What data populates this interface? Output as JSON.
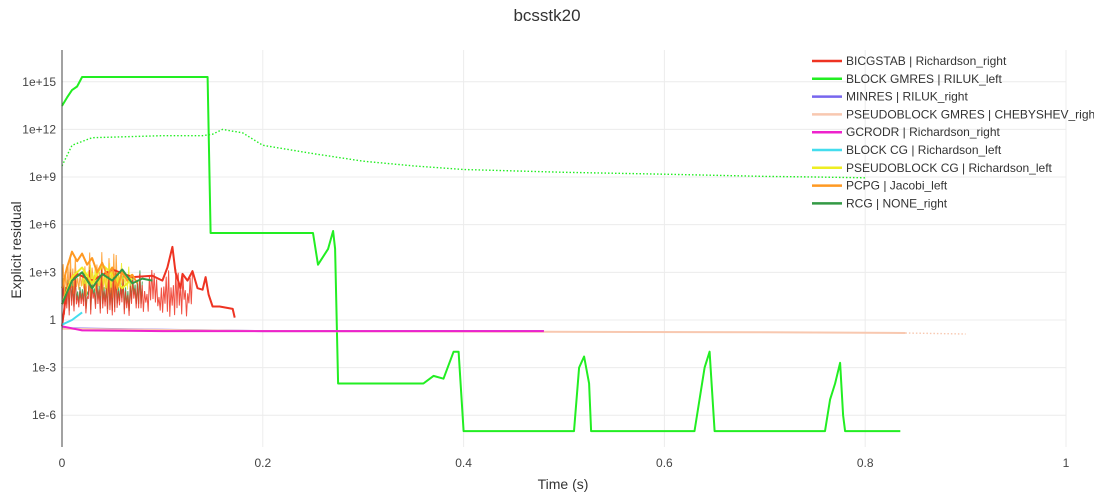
{
  "chart_data": {
    "type": "line",
    "title": "bcsstk20",
    "xlabel": "Time (s)",
    "ylabel": "Explicit residual",
    "x_axis": {
      "range": [
        0,
        1
      ],
      "ticks": [
        0,
        0.2,
        0.4,
        0.6,
        0.8,
        1
      ],
      "tick_labels": [
        "0",
        "0.2",
        "0.4",
        "0.6",
        "0.8",
        "1"
      ]
    },
    "y_axis": {
      "scale": "log",
      "range": [
        1e-08,
        1e+17
      ],
      "ticks": [
        1000000000000000.0,
        1000000000000.0,
        1000000000.0,
        1000000.0,
        1000.0,
        1,
        0.001,
        1e-06
      ],
      "tick_labels": [
        "1e+15",
        "1e+12",
        "1e+9",
        "1e+6",
        "1e+3",
        "1",
        "1e-3",
        "1e-6"
      ]
    },
    "grid": true,
    "legend_position": "top-right",
    "series": [
      {
        "name": "BICGSTAB | Richardson_right",
        "color": "#ee3322",
        "style": "solid",
        "points": [
          [
            0,
            0.4
          ],
          [
            0.005,
            100
          ],
          [
            0.015,
            800
          ],
          [
            0.03,
            300
          ],
          [
            0.05,
            1500
          ],
          [
            0.07,
            500
          ],
          [
            0.09,
            600
          ],
          [
            0.1,
            300
          ],
          [
            0.105,
            2000
          ],
          [
            0.11,
            40000
          ],
          [
            0.113,
            1000
          ],
          [
            0.118,
            100
          ],
          [
            0.12,
            800
          ],
          [
            0.125,
            300
          ],
          [
            0.13,
            1200
          ],
          [
            0.135,
            100
          ],
          [
            0.14,
            80
          ],
          [
            0.143,
            500
          ],
          [
            0.146,
            40
          ],
          [
            0.15,
            7
          ],
          [
            0.157,
            7
          ],
          [
            0.17,
            5
          ],
          [
            0.172,
            1.4
          ]
        ]
      },
      {
        "name": "BLOCK GMRES | RILUK_left",
        "color": "#22ee22",
        "style": "solid",
        "points": [
          [
            0,
            30000000000000.0
          ],
          [
            0.005,
            100000000000000.0
          ],
          [
            0.01,
            300000000000000.0
          ],
          [
            0.015,
            500000000000000.0
          ],
          [
            0.02,
            2000000000000000.0
          ],
          [
            0.145,
            2000000000000000.0
          ],
          [
            0.148,
            300000.0
          ],
          [
            0.25,
            300000.0
          ],
          [
            0.255,
            3000.0
          ],
          [
            0.265,
            30000.0
          ],
          [
            0.27,
            400000.0
          ],
          [
            0.272,
            30000.0
          ],
          [
            0.275,
            0.0001
          ],
          [
            0.36,
            0.0001
          ],
          [
            0.37,
            0.0003
          ],
          [
            0.38,
            0.0002
          ],
          [
            0.39,
            0.01
          ],
          [
            0.395,
            0.01
          ],
          [
            0.4,
            1e-07
          ],
          [
            0.51,
            1e-07
          ],
          [
            0.515,
            0.001
          ],
          [
            0.52,
            0.005
          ],
          [
            0.525,
            0.0001
          ],
          [
            0.527,
            1e-07
          ],
          [
            0.63,
            1e-07
          ],
          [
            0.64,
            0.001
          ],
          [
            0.645,
            0.01
          ],
          [
            0.647,
            0.0001
          ],
          [
            0.65,
            1e-07
          ],
          [
            0.76,
            1e-07
          ],
          [
            0.765,
            1e-05
          ],
          [
            0.77,
            0.0001
          ],
          [
            0.775,
            0.002
          ],
          [
            0.778,
            1e-06
          ],
          [
            0.78,
            1e-07
          ],
          [
            0.835,
            1e-07
          ]
        ]
      },
      {
        "name": "BLOCK GMRES | RILUK_left",
        "color": "#22ee22",
        "style": "dotted",
        "points": [
          [
            0,
            5000000000.0
          ],
          [
            0.01,
            100000000000.0
          ],
          [
            0.03,
            300000000000.0
          ],
          [
            0.1,
            400000000000.0
          ],
          [
            0.14,
            400000000000.0
          ],
          [
            0.15,
            500000000000.0
          ],
          [
            0.16,
            1000000000000.0
          ],
          [
            0.18,
            600000000000.0
          ],
          [
            0.2,
            100000000000.0
          ],
          [
            0.25,
            30000000000.0
          ],
          [
            0.3,
            10000000000.0
          ],
          [
            0.35,
            5000000000.0
          ],
          [
            0.4,
            3000000000.0
          ],
          [
            0.5,
            2000000000.0
          ],
          [
            0.6,
            1500000000.0
          ],
          [
            0.7,
            1100000000.0
          ],
          [
            0.75,
            1000000000.0
          ],
          [
            0.8,
            900000000.0
          ]
        ]
      },
      {
        "name": "MINRES | RILUK_right",
        "color": "#7766ee",
        "style": "solid",
        "points": [
          [
            0,
            0.3
          ],
          [
            0.2,
            0.2
          ],
          [
            0.4,
            0.2
          ],
          [
            0.48,
            0.2
          ]
        ]
      },
      {
        "name": "PSEUDOBLOCK GMRES | CHEBYSHEV_right",
        "color": "#f8c8b0",
        "style": "solid",
        "points": [
          [
            0,
            0.28
          ],
          [
            0.2,
            0.2
          ],
          [
            0.48,
            0.18
          ],
          [
            0.7,
            0.17
          ],
          [
            0.84,
            0.15
          ]
        ]
      },
      {
        "name": "PSEUDOBLOCK GMRES | CHEBYSHEV_right",
        "color": "#f8c8b0",
        "style": "dotted",
        "points": [
          [
            0.84,
            0.15
          ],
          [
            0.9,
            0.13
          ]
        ]
      },
      {
        "name": "GCRODR | Richardson_right",
        "color": "#ee22cc",
        "style": "solid",
        "points": [
          [
            0,
            0.4
          ],
          [
            0.02,
            0.22
          ],
          [
            0.1,
            0.2
          ],
          [
            0.3,
            0.2
          ],
          [
            0.48,
            0.2
          ]
        ]
      },
      {
        "name": "BLOCK CG | Richardson_left",
        "color": "#44ddee",
        "style": "solid",
        "points": [
          [
            0,
            0.5
          ],
          [
            0.01,
            1
          ],
          [
            0.02,
            3
          ]
        ]
      },
      {
        "name": "PSEUDOBLOCK CG | Richardson_left",
        "color": "#eeee22",
        "style": "solid",
        "points": [
          [
            0,
            10
          ],
          [
            0.01,
            500
          ],
          [
            0.02,
            2000
          ],
          [
            0.03,
            200
          ],
          [
            0.04,
            3000
          ],
          [
            0.05,
            800
          ],
          [
            0.06,
            100
          ],
          [
            0.07,
            400
          ]
        ]
      },
      {
        "name": "PCPG | Jacobi_left",
        "color": "#ff9922",
        "style": "solid",
        "points": [
          [
            0,
            100
          ],
          [
            0.005,
            2000
          ],
          [
            0.01,
            20000
          ],
          [
            0.015,
            5000
          ],
          [
            0.02,
            15000
          ],
          [
            0.025,
            3000
          ],
          [
            0.03,
            8000
          ],
          [
            0.035,
            1000
          ],
          [
            0.04,
            4000
          ],
          [
            0.045,
            600
          ],
          [
            0.05,
            2000
          ],
          [
            0.055,
            100
          ],
          [
            0.06,
            1000
          ],
          [
            0.065,
            300
          ],
          [
            0.07,
            700
          ],
          [
            0.075,
            200
          ]
        ]
      },
      {
        "name": "RCG | NONE_right",
        "color": "#339944",
        "style": "solid",
        "points": [
          [
            0,
            10
          ],
          [
            0.01,
            300
          ],
          [
            0.02,
            1000
          ],
          [
            0.03,
            100
          ],
          [
            0.04,
            800
          ],
          [
            0.05,
            300
          ],
          [
            0.06,
            1500
          ],
          [
            0.07,
            200
          ],
          [
            0.08,
            400
          ],
          [
            0.09,
            300
          ]
        ]
      }
    ],
    "noise_bands": [
      {
        "series": "RCG | NONE_right",
        "color": "#339944",
        "x_range": [
          0,
          0.08
        ],
        "log_low": 0.5,
        "log_high": 3.4
      },
      {
        "series": "PCPG | Jacobi_left",
        "color": "#ff9922",
        "x_range": [
          0,
          0.06
        ],
        "log_low": 1.3,
        "log_high": 4.3
      },
      {
        "series": "PSEUDOBLOCK CG | Richardson_left",
        "color": "#eeee22",
        "x_range": [
          0.02,
          0.07
        ],
        "log_low": 1.8,
        "log_high": 3.6
      },
      {
        "series": "BICGSTAB | Richardson_right",
        "color": "#ee3322",
        "x_range": [
          0,
          0.13
        ],
        "log_low": 0.2,
        "log_high": 3.2
      }
    ],
    "legend": [
      {
        "label": "BICGSTAB | Richardson_right",
        "color": "#ee3322"
      },
      {
        "label": "BLOCK GMRES | RILUK_left",
        "color": "#22ee22"
      },
      {
        "label": "MINRES | RILUK_right",
        "color": "#7766ee"
      },
      {
        "label": "PSEUDOBLOCK GMRES | CHEBYSHEV_right",
        "color": "#f8c8b0"
      },
      {
        "label": "GCRODR | Richardson_right",
        "color": "#ee22cc"
      },
      {
        "label": "BLOCK CG | Richardson_left",
        "color": "#44ddee"
      },
      {
        "label": "PSEUDOBLOCK CG | Richardson_left",
        "color": "#eeee22"
      },
      {
        "label": "PCPG | Jacobi_left",
        "color": "#ff9922"
      },
      {
        "label": "RCG | NONE_right",
        "color": "#339944"
      }
    ]
  }
}
